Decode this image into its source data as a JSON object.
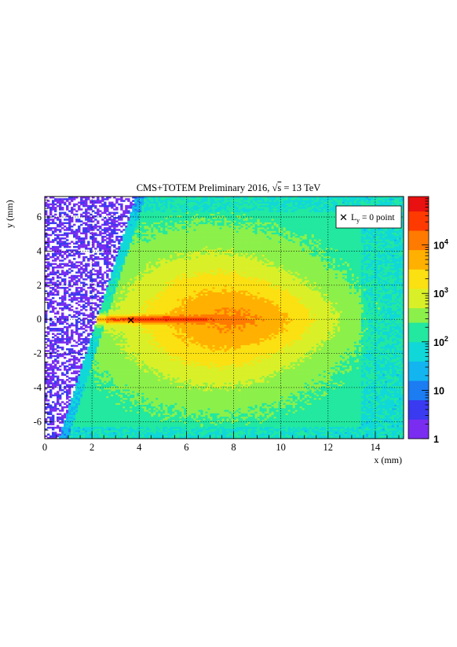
{
  "title_prefix": "CMS+TOTEM Preliminary 2016, ",
  "title_sqrt": "s",
  "title_suffix": " = 13 TeV",
  "legend": {
    "marker_symbol": "✕",
    "label_main": "L",
    "label_sub": "y",
    "label_rest": " = 0 point"
  },
  "chart_data": {
    "type": "heatmap",
    "xlabel": "x (mm)",
    "ylabel": "y (mm)",
    "xlim": [
      0,
      15.2
    ],
    "ylim": [
      -7,
      7.2
    ],
    "x_ticks": [
      0,
      2,
      4,
      6,
      8,
      10,
      12,
      14
    ],
    "x_tick_labels": [
      "0",
      "2",
      "4",
      "6",
      "8",
      "10",
      "12",
      "14"
    ],
    "y_ticks": [
      -6,
      -4,
      -2,
      0,
      2,
      4,
      6
    ],
    "y_tick_labels": [
      "-6",
      "-4",
      "-2",
      "0",
      "2",
      "4",
      "6"
    ],
    "grid": true,
    "z_scale": "log",
    "z_range": [
      1,
      100000
    ],
    "z_ticks": [
      1,
      10,
      100,
      1000,
      10000
    ],
    "z_tick_labels": [
      {
        "base": "1",
        "exp": ""
      },
      {
        "base": "10",
        "exp": ""
      },
      {
        "base": "10",
        "exp": "2"
      },
      {
        "base": "10",
        "exp": "3"
      },
      {
        "base": "10",
        "exp": "4"
      }
    ],
    "marker": {
      "name": "Ly = 0 point",
      "x": 3.65,
      "y": -0.05
    },
    "legend_position": "top-right",
    "colors": {
      "palette": [
        "#7a2df0",
        "#3a3af0",
        "#1c7cf2",
        "#12b5f0",
        "#10d8d8",
        "#22e8a0",
        "#8cf04a",
        "#d9f028",
        "#fbe012",
        "#ffb000",
        "#ff7a00",
        "#ff3a00",
        "#e81010"
      ]
    }
  }
}
